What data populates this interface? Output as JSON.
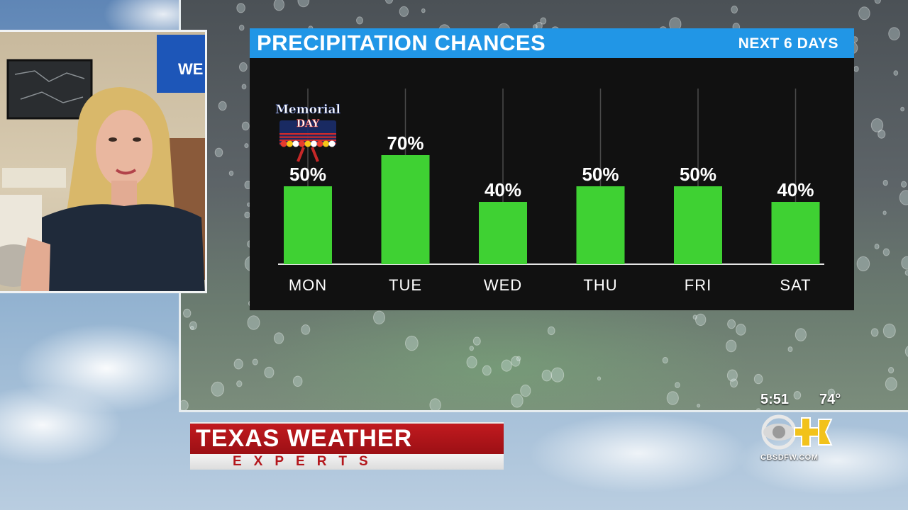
{
  "chart_data": {
    "type": "bar",
    "title": "PRECIPITATION CHANCES",
    "subtitle": "NEXT 6 DAYS",
    "categories": [
      "MON",
      "TUE",
      "WED",
      "THU",
      "FRI",
      "SAT"
    ],
    "values": [
      50,
      70,
      40,
      50,
      50,
      40
    ],
    "value_labels": [
      "50%",
      "70%",
      "40%",
      "50%",
      "50%",
      "40%"
    ],
    "ylim": [
      0,
      100
    ],
    "unit": "%",
    "bar_color": "#3fd133",
    "annotation": {
      "category": "MON",
      "text": "Memorial DAY"
    }
  },
  "colors": {
    "header_blue": "#2196e6",
    "panel_black": "#111111",
    "brand_red": "#b3161b"
  },
  "lower_third": {
    "title": "TEXAS WEATHER",
    "subtitle": "EXPERTS"
  },
  "bug": {
    "time": "5:51",
    "temperature": "74°",
    "website": "CBSDFW.COM",
    "logo": "cbs-11-logo"
  },
  "inset": {
    "wall_text": "WE"
  }
}
